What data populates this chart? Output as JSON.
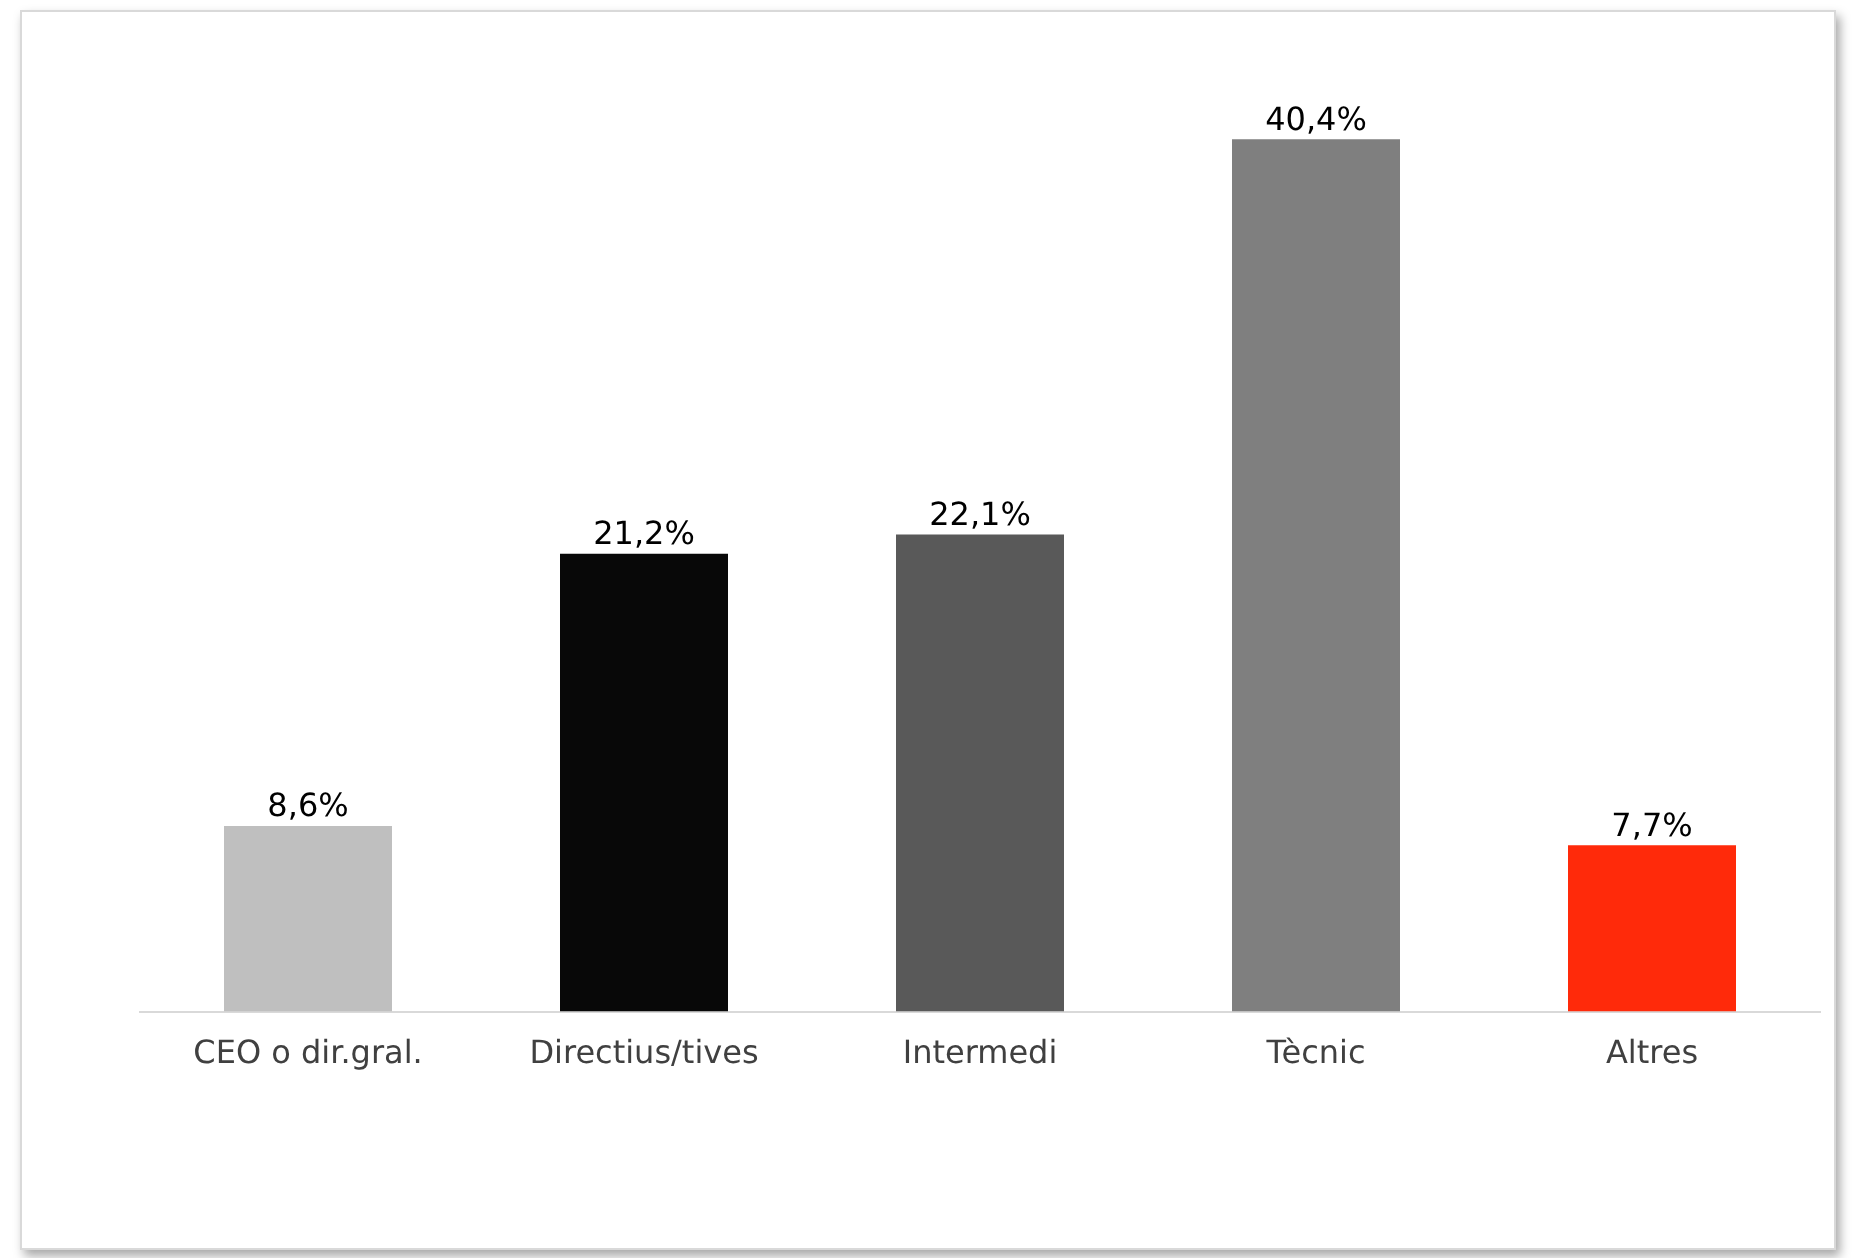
{
  "chart_data": {
    "type": "bar",
    "categories": [
      "CEO o dir.gral.",
      "Directius/tives",
      "Intermedi",
      "Tècnic",
      "Altres"
    ],
    "values": [
      8.6,
      21.2,
      22.1,
      40.4,
      7.7
    ],
    "colors": [
      "#bfbfbf",
      "#080808",
      "#595959",
      "#7f7f7f",
      "#ff2a0a"
    ],
    "value_labels": [
      "8,6%",
      "21,2%",
      "22,1%",
      "40,4%",
      "7,7%"
    ],
    "legend": false,
    "grid": false
  }
}
